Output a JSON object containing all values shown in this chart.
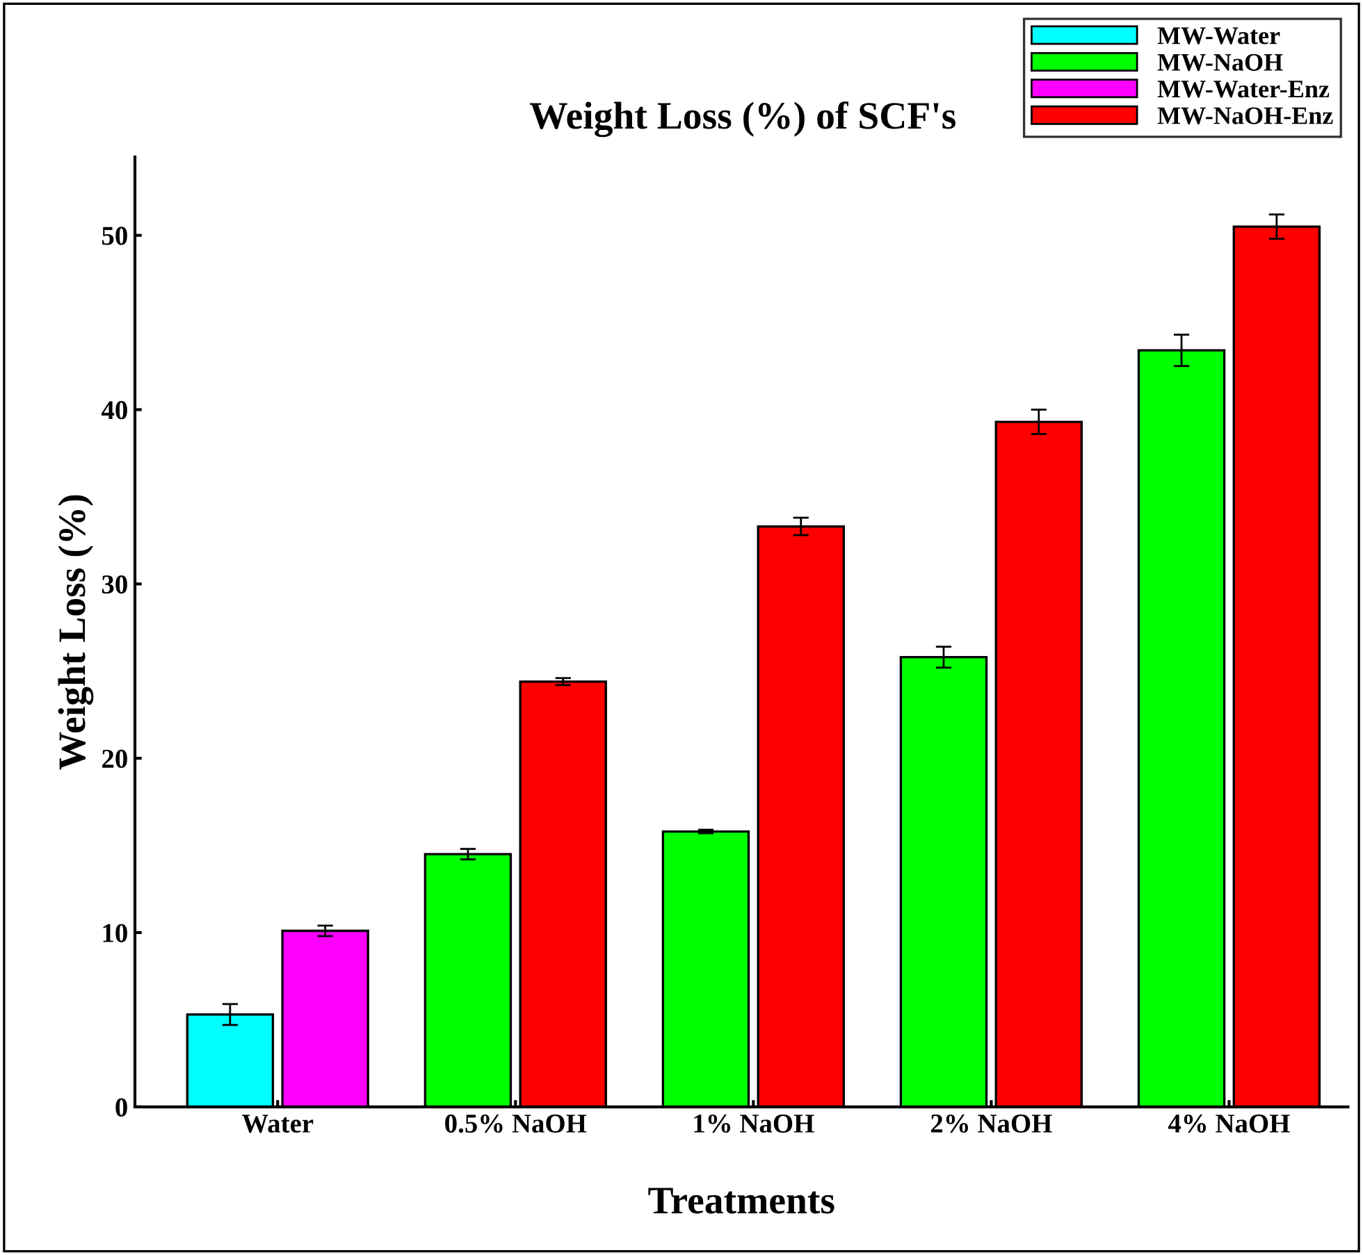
{
  "chart_data": {
    "type": "bar",
    "title": "Weight Loss (%) of SCF's",
    "xlabel": "Treatments",
    "ylabel": "Weight Loss (%)",
    "categories": [
      "Water",
      "0.5% NaOH",
      "1% NaOH",
      "2% NaOH",
      "4% NaOH"
    ],
    "series": [
      {
        "name": "MW-Water",
        "color": "#00ffff",
        "values": [
          5.3,
          null,
          null,
          null,
          null
        ],
        "errors": [
          0.6,
          null,
          null,
          null,
          null
        ]
      },
      {
        "name": "MW-NaOH",
        "color": "#00ff00",
        "values": [
          null,
          14.5,
          15.8,
          25.8,
          43.4
        ],
        "errors": [
          null,
          0.3,
          0.1,
          0.6,
          0.9
        ]
      },
      {
        "name": "MW-Water-Enz",
        "color": "#ff00ff",
        "values": [
          10.1,
          null,
          null,
          null,
          null
        ],
        "errors": [
          0.3,
          null,
          null,
          null,
          null
        ]
      },
      {
        "name": "MW-NaOH-Enz",
        "color": "#ff0000",
        "values": [
          null,
          24.4,
          33.3,
          39.3,
          50.5
        ],
        "errors": [
          null,
          0.2,
          0.5,
          0.7,
          0.7
        ]
      }
    ],
    "ylim": [
      0,
      54.5
    ],
    "yticks": [
      0,
      10,
      20,
      30,
      40,
      50
    ],
    "grid": false,
    "legend": "top right"
  }
}
